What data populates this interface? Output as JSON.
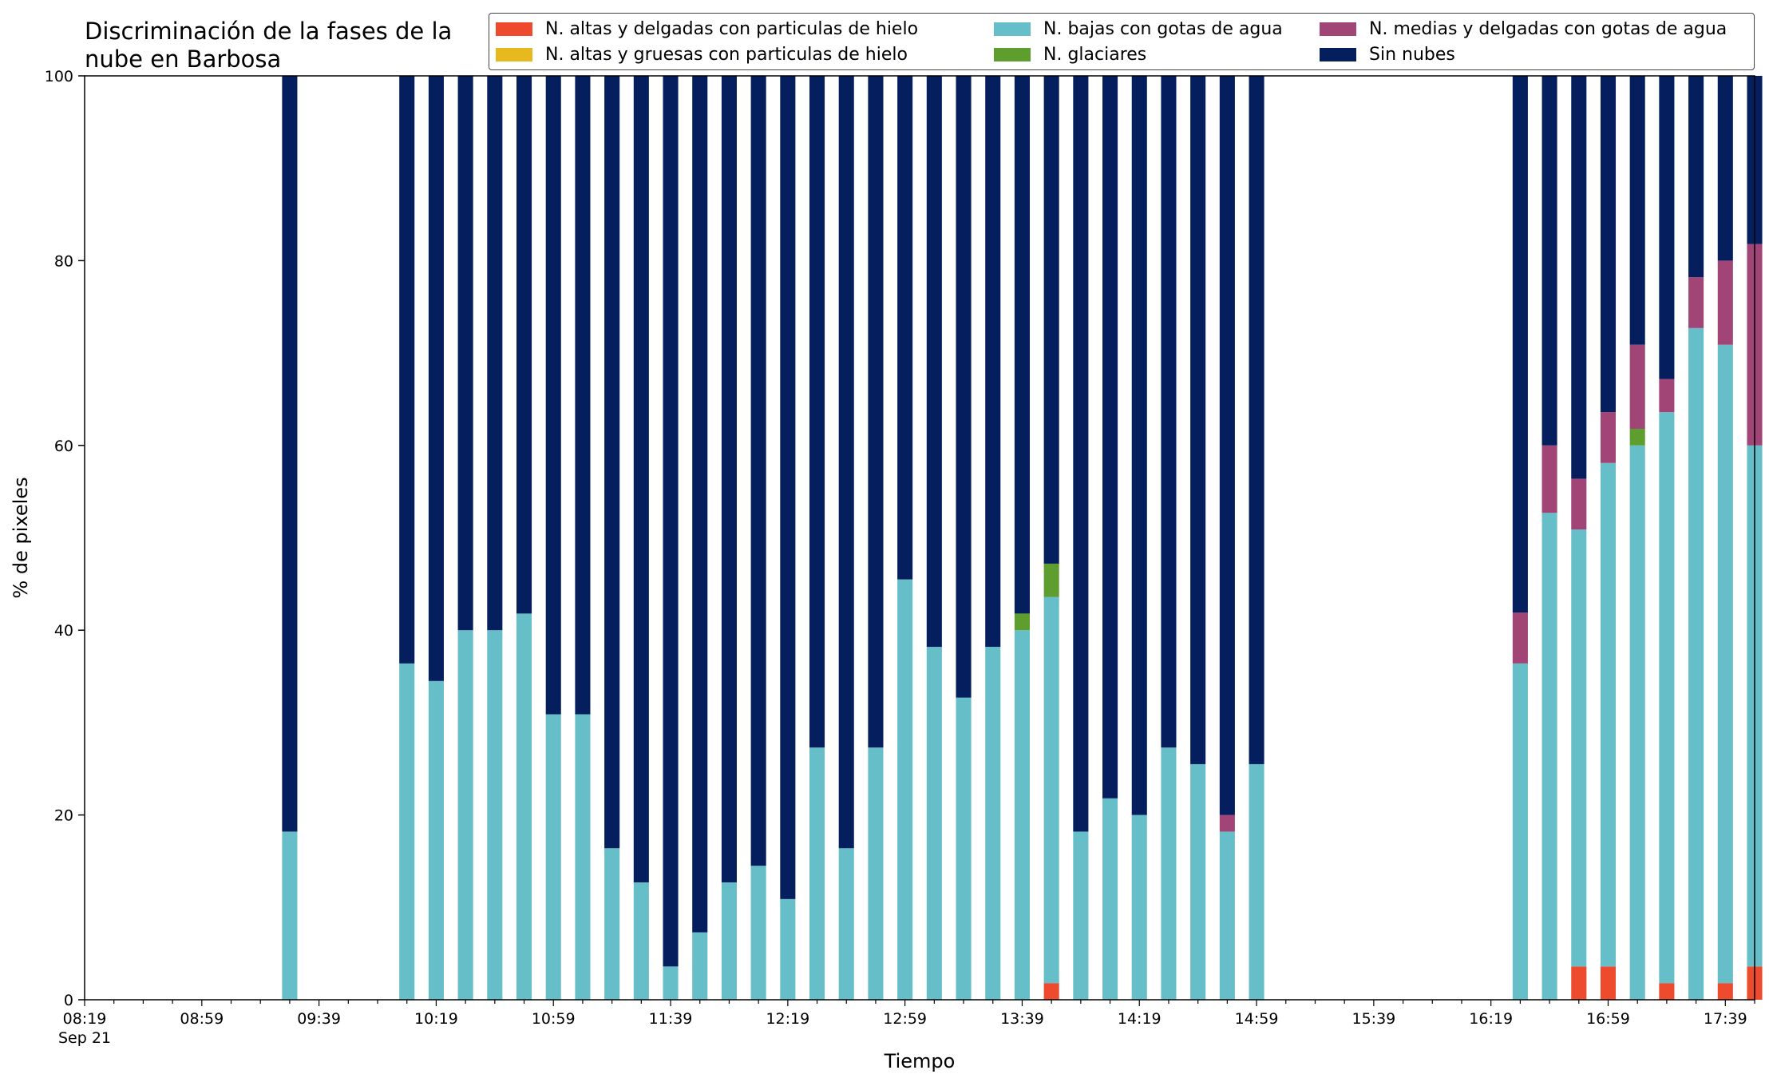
{
  "chart_data": {
    "type": "bar",
    "stacked": true,
    "title": "Discriminación de la fases de la\nnube en Barbosa",
    "xlabel": "Tiempo",
    "ylabel": "% de pixeles",
    "ylim": [
      0,
      100
    ],
    "yticks": [
      0,
      20,
      40,
      60,
      80,
      100
    ],
    "xlim_minutes": [
      0,
      570
    ],
    "xtick_labels": [
      {
        "t": 0,
        "label": "08:19",
        "sub": "Sep 21"
      },
      {
        "t": 40,
        "label": "08:59"
      },
      {
        "t": 80,
        "label": "09:39"
      },
      {
        "t": 120,
        "label": "10:19"
      },
      {
        "t": 160,
        "label": "10:59"
      },
      {
        "t": 200,
        "label": "11:39"
      },
      {
        "t": 240,
        "label": "12:19"
      },
      {
        "t": 280,
        "label": "12:59"
      },
      {
        "t": 320,
        "label": "13:39"
      },
      {
        "t": 360,
        "label": "14:19"
      },
      {
        "t": 400,
        "label": "14:59"
      },
      {
        "t": 440,
        "label": "15:39"
      },
      {
        "t": 480,
        "label": "16:19"
      },
      {
        "t": 520,
        "label": "16:59"
      },
      {
        "t": 560,
        "label": "17:39"
      }
    ],
    "legend_position": "top-right",
    "series": [
      {
        "name": "N. altas y delgadas con particulas de hielo",
        "color": "#ee4a2e"
      },
      {
        "name": "N. altas y gruesas con particulas de hielo",
        "color": "#e8b81f"
      },
      {
        "name": "N. bajas con gotas de agua",
        "color": "#66bec9"
      },
      {
        "name": "N. glaciares",
        "color": "#5d9e2e"
      },
      {
        "name": "N. medias y delgadas con gotas de agua",
        "color": "#a14576"
      },
      {
        "name": "Sin nubes",
        "color": "#051f5e"
      }
    ],
    "bars": [
      {
        "time": "09:29",
        "values": [
          0,
          0,
          18.2,
          0,
          0,
          81.8
        ]
      },
      {
        "time": "10:09",
        "values": [
          0,
          0,
          36.4,
          0,
          0,
          63.6
        ]
      },
      {
        "time": "10:19",
        "values": [
          0,
          0,
          34.5,
          0,
          0,
          65.5
        ]
      },
      {
        "time": "10:29",
        "values": [
          0,
          0,
          40.0,
          0,
          0,
          60.0
        ]
      },
      {
        "time": "10:39",
        "values": [
          0,
          0,
          40.0,
          0,
          0,
          60.0
        ]
      },
      {
        "time": "10:49",
        "values": [
          0,
          0,
          41.8,
          0,
          0,
          58.2
        ]
      },
      {
        "time": "10:59",
        "values": [
          0,
          0,
          30.9,
          0,
          0,
          69.1
        ]
      },
      {
        "time": "11:09",
        "values": [
          0,
          0,
          30.9,
          0,
          0,
          69.1
        ]
      },
      {
        "time": "11:19",
        "values": [
          0,
          0,
          16.4,
          0,
          0,
          83.6
        ]
      },
      {
        "time": "11:29",
        "values": [
          0,
          0,
          12.7,
          0,
          0,
          87.3
        ]
      },
      {
        "time": "11:39",
        "values": [
          0,
          0,
          3.6,
          0,
          0,
          96.4
        ]
      },
      {
        "time": "11:49",
        "values": [
          0,
          0,
          7.3,
          0,
          0,
          92.7
        ]
      },
      {
        "time": "11:59",
        "values": [
          0,
          0,
          12.7,
          0,
          0,
          87.3
        ]
      },
      {
        "time": "12:09",
        "values": [
          0,
          0,
          14.5,
          0,
          0,
          85.5
        ]
      },
      {
        "time": "12:19",
        "values": [
          0,
          0,
          10.9,
          0,
          0,
          89.1
        ]
      },
      {
        "time": "12:29",
        "values": [
          0,
          0,
          27.3,
          0,
          0,
          72.7
        ]
      },
      {
        "time": "12:39",
        "values": [
          0,
          0,
          16.4,
          0,
          0,
          83.6
        ]
      },
      {
        "time": "12:49",
        "values": [
          0,
          0,
          27.3,
          0,
          0,
          72.7
        ]
      },
      {
        "time": "12:59",
        "values": [
          0,
          0,
          45.5,
          0,
          0,
          54.5
        ]
      },
      {
        "time": "13:09",
        "values": [
          0,
          0,
          38.2,
          0,
          0,
          61.8
        ]
      },
      {
        "time": "13:19",
        "values": [
          0,
          0,
          32.7,
          0,
          0,
          67.3
        ]
      },
      {
        "time": "13:29",
        "values": [
          0,
          0,
          38.2,
          0,
          0,
          61.8
        ]
      },
      {
        "time": "13:39",
        "values": [
          0,
          0,
          40.0,
          1.8,
          0,
          58.2
        ]
      },
      {
        "time": "13:49",
        "values": [
          1.8,
          0,
          41.8,
          3.6,
          0,
          52.8
        ]
      },
      {
        "time": "13:59",
        "values": [
          0,
          0,
          18.2,
          0,
          0,
          81.8
        ]
      },
      {
        "time": "14:09",
        "values": [
          0,
          0,
          21.8,
          0,
          0,
          78.2
        ]
      },
      {
        "time": "14:19",
        "values": [
          0,
          0,
          20.0,
          0,
          0,
          80.0
        ]
      },
      {
        "time": "14:29",
        "values": [
          0,
          0,
          27.3,
          0,
          0,
          72.7
        ]
      },
      {
        "time": "14:39",
        "values": [
          0,
          0,
          25.5,
          0,
          0,
          74.5
        ]
      },
      {
        "time": "14:49",
        "values": [
          0,
          0,
          18.2,
          0,
          1.8,
          80.0
        ]
      },
      {
        "time": "14:59",
        "values": [
          0,
          0,
          25.5,
          0,
          0,
          74.5
        ]
      },
      {
        "time": "16:29",
        "values": [
          0,
          0,
          36.4,
          0,
          5.5,
          58.1
        ]
      },
      {
        "time": "16:39",
        "values": [
          0,
          0,
          52.7,
          0,
          7.3,
          40.0
        ]
      },
      {
        "time": "16:49",
        "values": [
          3.6,
          0,
          47.3,
          0,
          5.5,
          43.6
        ]
      },
      {
        "time": "16:59",
        "values": [
          3.6,
          0,
          54.5,
          0,
          5.5,
          36.4
        ]
      },
      {
        "time": "17:09",
        "values": [
          0,
          0,
          60.0,
          1.8,
          9.1,
          29.1
        ]
      },
      {
        "time": "17:19",
        "values": [
          1.8,
          0,
          61.8,
          0,
          3.6,
          32.8
        ]
      },
      {
        "time": "17:29",
        "values": [
          0,
          0,
          72.7,
          0,
          5.5,
          21.8
        ]
      },
      {
        "time": "17:39",
        "values": [
          1.8,
          0,
          69.1,
          0,
          9.1,
          20.0
        ]
      },
      {
        "time": "17:49",
        "values": [
          3.6,
          0,
          56.4,
          0,
          21.8,
          18.2
        ]
      }
    ]
  }
}
